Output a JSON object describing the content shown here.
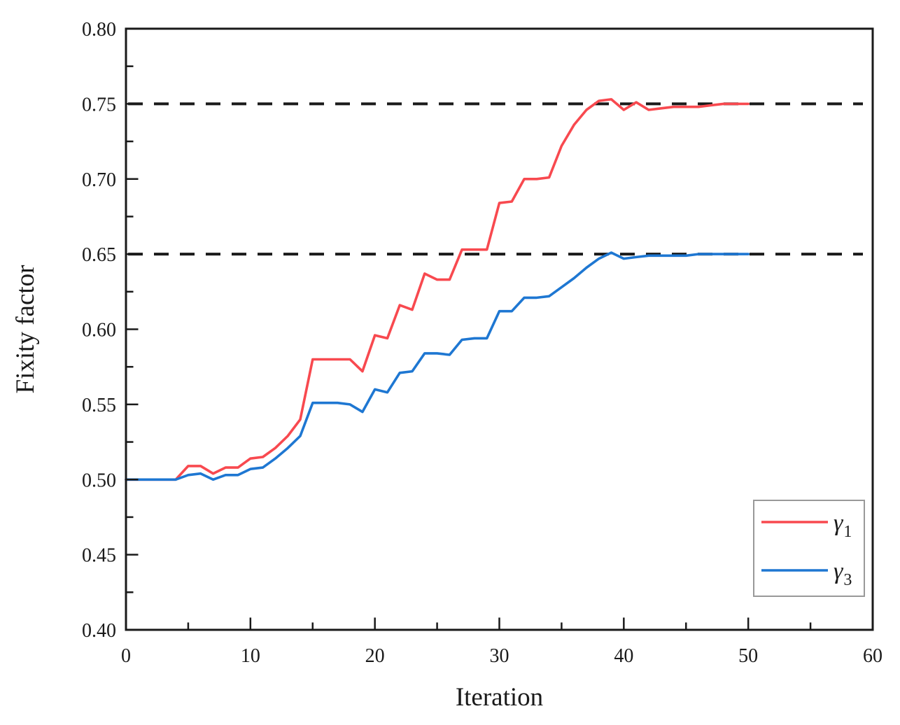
{
  "figure": {
    "background": "#ffffff"
  },
  "chart_data": {
    "type": "line",
    "title": "",
    "xlabel": "Iteration",
    "ylabel": "Fixity factor",
    "xlim": [
      0,
      60
    ],
    "ylim": [
      0.4,
      0.8
    ],
    "grid": false,
    "axis_color": "#1a1a1a",
    "legend_position": "lower-right",
    "legend_border_color": "#999999",
    "x_major_ticks": [
      0,
      10,
      20,
      30,
      40,
      50,
      60
    ],
    "x_tick_labels": [
      "0",
      "10",
      "20",
      "30",
      "40",
      "50",
      "60"
    ],
    "x_minor_ticks": [
      5,
      15,
      25,
      35,
      45,
      55
    ],
    "y_major_ticks": [
      0.4,
      0.45,
      0.5,
      0.55,
      0.6,
      0.65,
      0.7,
      0.75,
      0.8
    ],
    "y_tick_labels": [
      "0.40",
      "0.45",
      "0.50",
      "0.55",
      "0.60",
      "0.65",
      "0.70",
      "0.75",
      "0.80"
    ],
    "y_minor_ticks": [
      0.425,
      0.475,
      0.525,
      0.575,
      0.625,
      0.675,
      0.725,
      0.775
    ],
    "reference_lines": [
      {
        "y": 0.75,
        "style": "dashed",
        "color": "#1a1a1a"
      },
      {
        "y": 0.65,
        "style": "dashed",
        "color": "#1a1a1a"
      }
    ],
    "x": [
      0,
      1,
      2,
      3,
      4,
      5,
      6,
      7,
      8,
      9,
      10,
      11,
      12,
      13,
      14,
      15,
      16,
      17,
      18,
      19,
      20,
      21,
      22,
      23,
      24,
      25,
      26,
      27,
      28,
      29,
      30,
      31,
      32,
      33,
      34,
      35,
      36,
      37,
      38,
      39,
      40,
      41,
      42,
      43,
      44,
      45,
      46,
      47,
      48,
      49,
      50
    ],
    "series": [
      {
        "name": "gamma1",
        "label_main": "γ",
        "label_sub": "1",
        "color": "#f8494f",
        "converges_to": 0.75,
        "values": [
          0.5,
          0.5,
          0.5,
          0.5,
          0.5,
          0.509,
          0.509,
          0.504,
          0.508,
          0.508,
          0.514,
          0.515,
          0.521,
          0.529,
          0.54,
          0.58,
          0.58,
          0.58,
          0.58,
          0.572,
          0.596,
          0.594,
          0.616,
          0.613,
          0.637,
          0.633,
          0.633,
          0.653,
          0.653,
          0.653,
          0.684,
          0.685,
          0.7,
          0.7,
          0.701,
          0.722,
          0.736,
          0.746,
          0.752,
          0.753,
          0.746,
          0.751,
          0.746,
          0.747,
          0.748,
          0.748,
          0.748,
          0.749,
          0.75,
          0.75,
          0.75
        ]
      },
      {
        "name": "gamma3",
        "label_main": "γ",
        "label_sub": "3",
        "color": "#1e77d2",
        "converges_to": 0.65,
        "values": [
          0.5,
          0.5,
          0.5,
          0.5,
          0.5,
          0.503,
          0.504,
          0.5,
          0.503,
          0.503,
          0.507,
          0.508,
          0.514,
          0.521,
          0.529,
          0.551,
          0.551,
          0.551,
          0.55,
          0.545,
          0.56,
          0.558,
          0.571,
          0.572,
          0.584,
          0.584,
          0.583,
          0.593,
          0.594,
          0.594,
          0.612,
          0.612,
          0.621,
          0.621,
          0.622,
          0.628,
          0.634,
          0.641,
          0.647,
          0.651,
          0.647,
          0.648,
          0.649,
          0.649,
          0.649,
          0.649,
          0.65,
          0.65,
          0.65,
          0.65,
          0.65
        ]
      }
    ]
  }
}
